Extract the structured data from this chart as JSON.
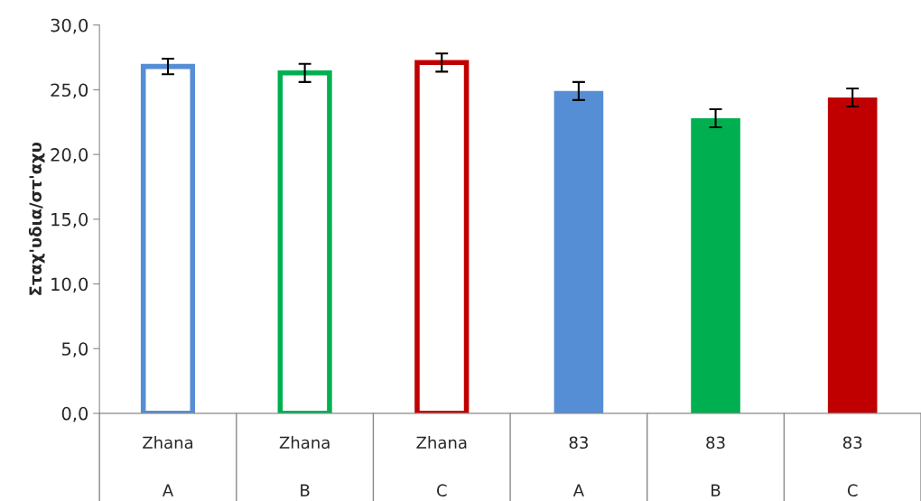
{
  "chart_data": {
    "type": "bar",
    "ylabel": "Σταχ'υδια/στ'αχυ",
    "categories": [
      "Zhana\nA",
      "Zhana\nB",
      "Zhana\nC",
      "83\nA",
      "83\nB",
      "83\nC"
    ],
    "series": [
      {
        "line_style": "solid",
        "colors": [
          "#558ed5",
          "#00b050",
          "#c00000",
          null,
          null,
          null
        ],
        "values": [
          26.8,
          26.3,
          27.1,
          null,
          null,
          null
        ],
        "errors": [
          0.6,
          0.7,
          0.7,
          null,
          null,
          null
        ]
      },
      {
        "colors": [
          null,
          null,
          null,
          "#558ed5",
          "#00b050",
          "#c00000"
        ],
        "values": [
          null,
          null,
          null,
          24.9,
          22.8,
          24.4
        ],
        "errors": [
          null,
          null,
          null,
          0.7,
          0.7,
          0.7
        ]
      }
    ],
    "ylim": [
      0,
      30
    ],
    "yticks": [
      {
        "value": 0,
        "label": "0,0"
      },
      {
        "value": 5,
        "label": "5,0"
      },
      {
        "value": 10,
        "label": "10,0"
      },
      {
        "value": 15,
        "label": "15,0"
      },
      {
        "value": 20,
        "label": "20,0"
      },
      {
        "value": 25,
        "label": "25,0"
      },
      {
        "value": 30,
        "label": "30,0"
      }
    ],
    "grid": false,
    "legend": false
  }
}
